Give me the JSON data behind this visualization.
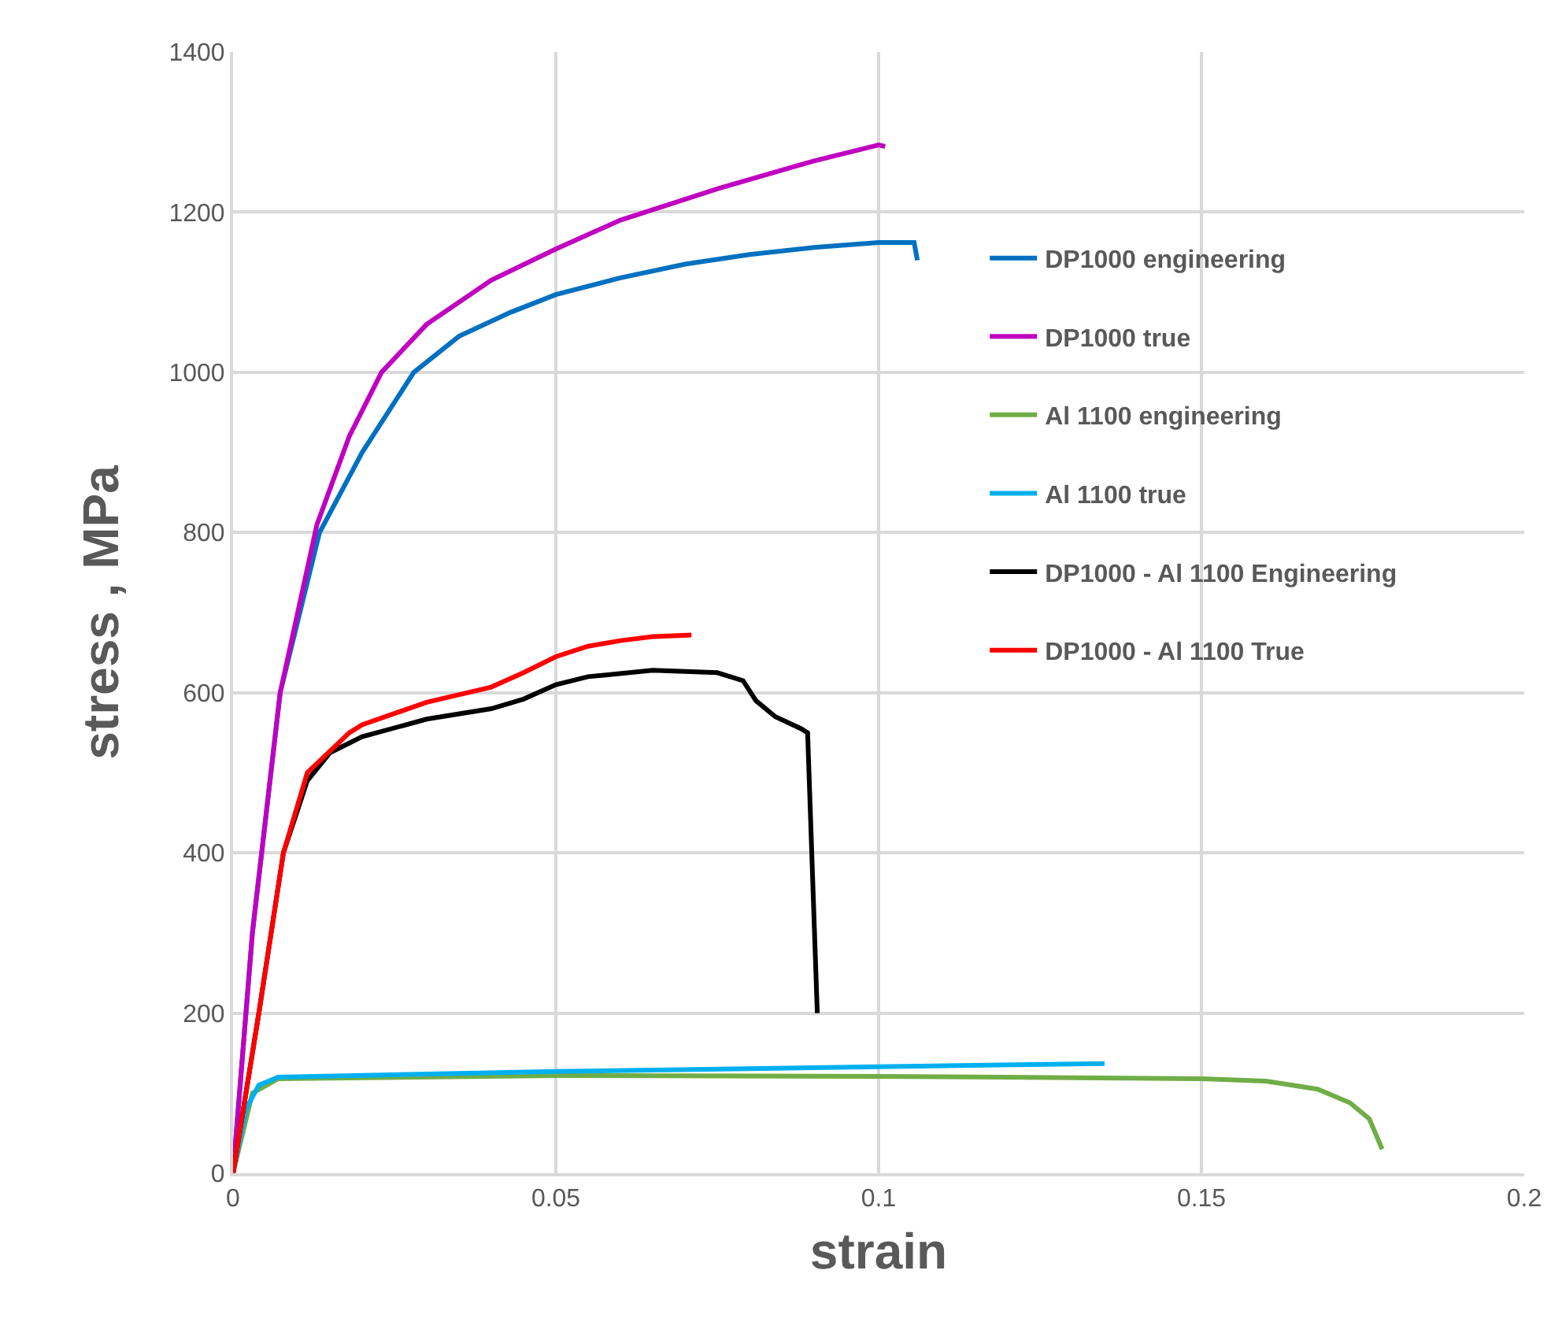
{
  "chart_data": {
    "type": "line",
    "xlabel": "strain",
    "ylabel": "stress , MPa",
    "xlim": [
      0,
      0.2
    ],
    "ylim": [
      0,
      1400
    ],
    "xticks": [
      0,
      0.05,
      0.1,
      0.15,
      0.2
    ],
    "yticks": [
      0,
      200,
      400,
      600,
      800,
      1000,
      1200,
      1400
    ],
    "grid": true,
    "legend": "right",
    "marker": "none",
    "line_style": "solid",
    "series": [
      {
        "name": "DP1000 engineering",
        "color": "#0070c0",
        "x": [
          0,
          0.003,
          0.0073,
          0.0134,
          0.02,
          0.028,
          0.035,
          0.043,
          0.05,
          0.06,
          0.07,
          0.08,
          0.09,
          0.1,
          0.1055,
          0.106
        ],
        "values": [
          0,
          300,
          600,
          800,
          900,
          1000,
          1045,
          1075,
          1097,
          1118,
          1135,
          1147,
          1156,
          1162,
          1162,
          1140
        ]
      },
      {
        "name": "DP1000 true",
        "color": "#c000c0",
        "x": [
          0,
          0.003,
          0.0073,
          0.013,
          0.018,
          0.023,
          0.03,
          0.04,
          0.05,
          0.06,
          0.075,
          0.09,
          0.1,
          0.101
        ],
        "values": [
          0,
          300,
          600,
          810,
          920,
          1000,
          1060,
          1115,
          1154,
          1190,
          1229,
          1264,
          1284,
          1282
        ]
      },
      {
        "name": "Al 1100 engineering",
        "color": "#70ad47",
        "x": [
          0,
          0.003,
          0.007,
          0.05,
          0.1,
          0.15,
          0.16,
          0.168,
          0.173,
          0.176,
          0.178
        ],
        "values": [
          0,
          100,
          118,
          122,
          121,
          118,
          115,
          105,
          88,
          68,
          30
        ]
      },
      {
        "name": "Al 1100 true",
        "color": "#00b0f0",
        "x": [
          0,
          0.002,
          0.004,
          0.007,
          0.05,
          0.1,
          0.135
        ],
        "values": [
          0,
          80,
          110,
          120,
          127,
          133,
          137
        ]
      },
      {
        "name": "DP1000 - Al 1100 Engineering",
        "color": "#000000",
        "x": [
          0,
          0.004,
          0.0078,
          0.0115,
          0.015,
          0.02,
          0.03,
          0.04,
          0.045,
          0.05,
          0.055,
          0.065,
          0.075,
          0.079,
          0.081,
          0.084,
          0.088,
          0.089,
          0.0905
        ],
        "values": [
          0,
          200,
          400,
          490,
          525,
          545,
          567,
          580,
          592,
          610,
          620,
          628,
          625,
          615,
          590,
          570,
          555,
          550,
          200
        ]
      },
      {
        "name": "DP1000 - Al 1100 True",
        "color": "#ff0000",
        "x": [
          0,
          0.004,
          0.0078,
          0.0115,
          0.018,
          0.02,
          0.03,
          0.04,
          0.045,
          0.05,
          0.055,
          0.06,
          0.065,
          0.071
        ],
        "values": [
          0,
          200,
          400,
          500,
          550,
          560,
          588,
          607,
          625,
          645,
          658,
          665,
          670,
          672
        ]
      }
    ]
  }
}
